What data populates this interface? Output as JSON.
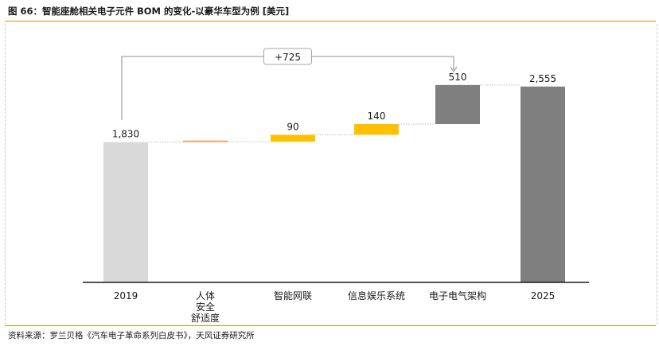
{
  "header": {
    "title": "图 66：智能座舱相关电子元件 BOM 的变化-以豪华车型为例 [美元]"
  },
  "footer": {
    "source": "资料来源：罗兰贝格《汽车电子革命系列白皮书》，天风证券研究所"
  },
  "chart_data": {
    "type": "waterfall",
    "categories": [
      [
        "2019"
      ],
      [
        "人体",
        "安全",
        "舒适度"
      ],
      [
        "智能网联"
      ],
      [
        "信息娱乐系统"
      ],
      [
        "电子电气架构"
      ],
      [
        "2025"
      ]
    ],
    "start_label": "1,830",
    "end_label": "2,555",
    "bars": [
      {
        "kind": "total",
        "base": 0,
        "value": 1830,
        "label": "1,830"
      },
      {
        "kind": "delta",
        "base": 1830,
        "value": 5,
        "label": ""
      },
      {
        "kind": "delta",
        "base": 1835,
        "value": 90,
        "label": "90"
      },
      {
        "kind": "delta",
        "base": 1925,
        "value": 140,
        "label": "140"
      },
      {
        "kind": "delta",
        "base": 2065,
        "value": 510,
        "label": "510"
      },
      {
        "kind": "total",
        "base": 0,
        "value": 2555,
        "label": "2,555"
      }
    ],
    "bracket_label": "+725",
    "ylim": [
      0,
      2750
    ],
    "colors": {
      "start_total": "#d9d9d9",
      "delta_small": "#f4a460",
      "delta": "#ffc000",
      "delta_large": "#7f7f7f",
      "end_total": "#7f7f7f",
      "connector": "#bfbfbf",
      "bracket": "#a6a6a6",
      "axis": "#1a1a1a"
    },
    "bar_colors": [
      "start_total",
      "delta_small",
      "delta",
      "delta",
      "delta_large",
      "end_total"
    ]
  }
}
